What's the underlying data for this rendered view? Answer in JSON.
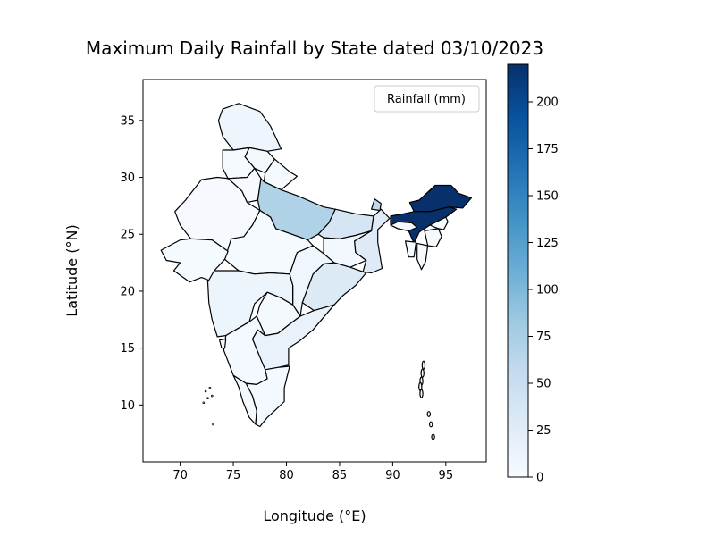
{
  "chart_data": {
    "type": "choropleth map",
    "title": "Maximum Daily Rainfall by State dated 03/10/2023",
    "xlabel": "Longitude (°E)",
    "ylabel": "Latitude (°N)",
    "xlim": [
      66.5,
      98.8
    ],
    "ylim": [
      5.0,
      38.6
    ],
    "x_ticks": [
      70,
      75,
      80,
      85,
      90,
      95
    ],
    "y_ticks": [
      10,
      15,
      20,
      25,
      30,
      35
    ],
    "legend_label": "Rainfall (mm)",
    "legend_position": "top-right",
    "colorbar": {
      "min": 0,
      "max": 220,
      "ticks": [
        0,
        25,
        50,
        75,
        100,
        125,
        150,
        175,
        200
      ],
      "colormap": "Blues",
      "stops": [
        "#f7fbff",
        "#deebf7",
        "#c6dbef",
        "#9ecae1",
        "#6baed6",
        "#4292c6",
        "#2171b5",
        "#08519c",
        "#08306b"
      ]
    },
    "regions": [
      {
        "name": "Jammu and Kashmir",
        "value": 10
      },
      {
        "name": "Himachal Pradesh",
        "value": 3
      },
      {
        "name": "Punjab",
        "value": 2
      },
      {
        "name": "Uttarakhand",
        "value": 2
      },
      {
        "name": "Haryana",
        "value": 1
      },
      {
        "name": "Rajasthan",
        "value": 1
      },
      {
        "name": "Uttar Pradesh",
        "value": 70
      },
      {
        "name": "Bihar",
        "value": 38
      },
      {
        "name": "Sikkim",
        "value": 60
      },
      {
        "name": "Arunachal Pradesh",
        "value": 220
      },
      {
        "name": "Assam",
        "value": 220
      },
      {
        "name": "Meghalaya",
        "value": 5
      },
      {
        "name": "Nagaland",
        "value": 2
      },
      {
        "name": "Manipur",
        "value": 2
      },
      {
        "name": "Mizoram",
        "value": 2
      },
      {
        "name": "Tripura",
        "value": 2
      },
      {
        "name": "West Bengal",
        "value": 28
      },
      {
        "name": "Jharkhand",
        "value": 5
      },
      {
        "name": "Odisha",
        "value": 30
      },
      {
        "name": "Chhattisgarh",
        "value": 8
      },
      {
        "name": "Madhya Pradesh",
        "value": 2
      },
      {
        "name": "Gujarat",
        "value": 2
      },
      {
        "name": "Maharashtra",
        "value": 12
      },
      {
        "name": "Telangana",
        "value": 3
      },
      {
        "name": "Andhra Pradesh",
        "value": 15
      },
      {
        "name": "Karnataka",
        "value": 4
      },
      {
        "name": "Goa",
        "value": 3
      },
      {
        "name": "Kerala",
        "value": 3
      },
      {
        "name": "Tamil Nadu",
        "value": 4
      },
      {
        "name": "Andaman and Nicobar Islands",
        "value": 2
      },
      {
        "name": "Lakshadweep",
        "value": 2
      }
    ]
  }
}
